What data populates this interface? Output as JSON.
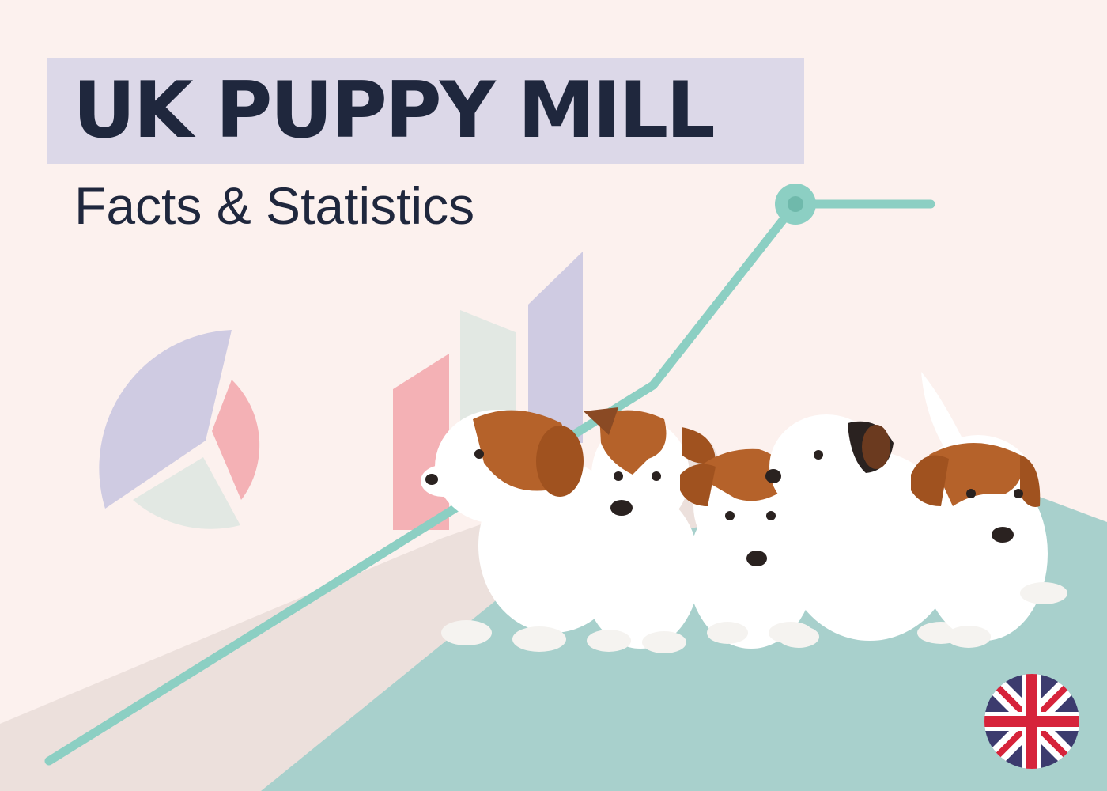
{
  "header": {
    "title": "UK PUPPY MILL",
    "subtitle": "Facts & Statistics"
  },
  "illustration": {
    "icons": [
      "pie-chart-icon",
      "bar-chart-icon",
      "trend-line-icon",
      "uk-flag-icon"
    ],
    "subject": "five-puppies-image"
  },
  "colors": {
    "background": "#fcf1ee",
    "title_box": "#dcd8e8",
    "text": "#1f273d",
    "teal": "#8ccfc3",
    "teal_floor": "#a8d0cc",
    "lavender": "#cfcbe2",
    "pink": "#f4b1b5",
    "mint_gray": "#e2e8e3"
  }
}
